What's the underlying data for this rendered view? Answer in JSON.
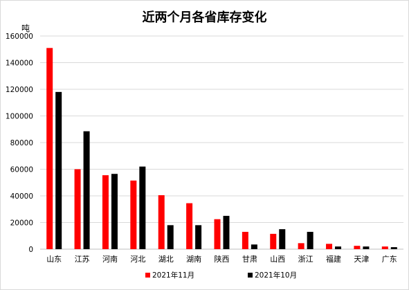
{
  "chart_data": {
    "type": "bar",
    "title": "近两个月各省库存变化",
    "ylabel": "吨",
    "xlabel": "",
    "ylim": [
      0,
      160000
    ],
    "yticks": [
      0,
      20000,
      40000,
      60000,
      80000,
      100000,
      120000,
      140000,
      160000
    ],
    "grid": true,
    "legend_position": "bottom",
    "categories": [
      "山东",
      "江苏",
      "河南",
      "河北",
      "湖北",
      "湖南",
      "陕西",
      "甘肃",
      "山西",
      "浙江",
      "福建",
      "天津",
      "广东"
    ],
    "series": [
      {
        "name": "2021年11月",
        "color": "#ff0000",
        "values": [
          151000,
          60000,
          55500,
          51500,
          40500,
          34500,
          22500,
          13000,
          11500,
          4500,
          4000,
          2500,
          2000
        ]
      },
      {
        "name": "2021年10月",
        "color": "#000000",
        "values": [
          118000,
          88500,
          56500,
          62000,
          18000,
          18000,
          25000,
          3500,
          15000,
          13000,
          2000,
          2000,
          1500
        ]
      }
    ]
  }
}
